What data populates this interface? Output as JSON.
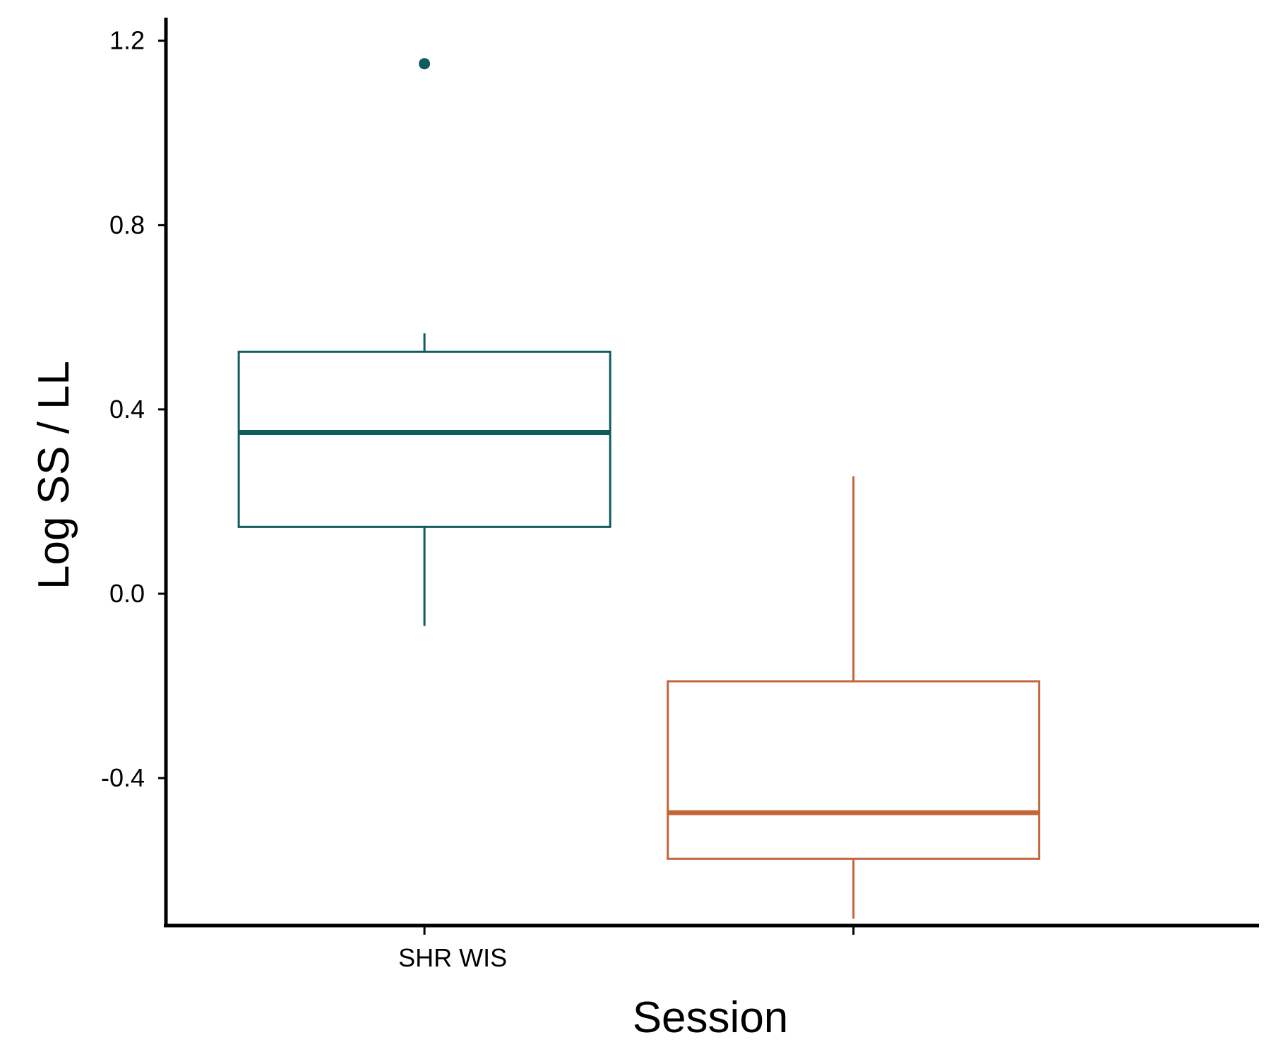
{
  "chart_data": {
    "type": "boxplot",
    "title": "",
    "xlabel": "Session",
    "ylabel": "Log SS / LL",
    "ylim": [
      -0.72,
      1.25
    ],
    "yticks": [
      -0.4,
      0.0,
      0.4,
      0.8,
      1.2
    ],
    "ytick_labels": [
      "-0.4",
      "0.0",
      "0.4",
      "0.8",
      "1.2"
    ],
    "categories": [
      "SHR WIS",
      ""
    ],
    "grid": false,
    "legend": "none",
    "series": [
      {
        "color": "#0d5c5e",
        "whisker_low": -0.07,
        "q1": 0.145,
        "median": 0.35,
        "q3": 0.525,
        "whisker_high": 0.565,
        "outliers": [
          1.15
        ]
      },
      {
        "color": "#c4653a",
        "whisker_low": -0.705,
        "q1": -0.575,
        "median": -0.475,
        "q3": -0.19,
        "whisker_high": 0.255,
        "outliers": []
      }
    ]
  }
}
